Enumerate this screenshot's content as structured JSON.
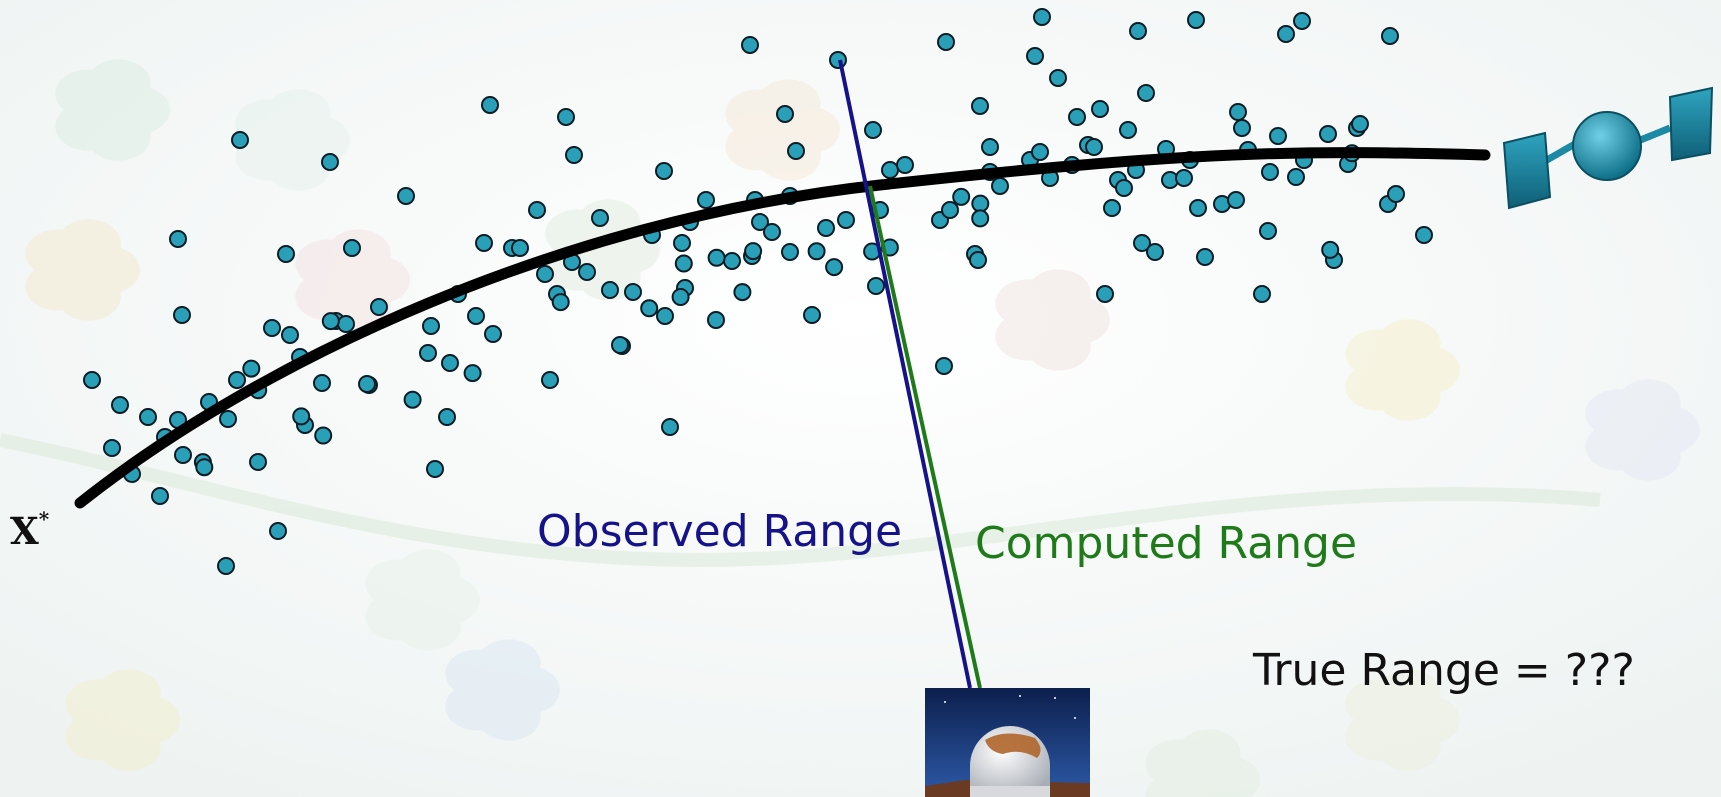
{
  "labels": {
    "initial_state": "X",
    "initial_state_sup": "*",
    "observed_range": "Observed Range",
    "computed_range": "Computed Range",
    "true_range": "True Range = ???"
  },
  "colors": {
    "background": "#f7f9f9",
    "points_fill": "#2aa0b8",
    "points_stroke": "#0b1d24",
    "trajectory": "#000000",
    "observed_line": "#16138a",
    "computed_line": "#1f7a1a",
    "satellite": "#1d8aa5"
  },
  "icons": {
    "satellite": "satellite-icon",
    "telescope": "telescope-dome-icon"
  },
  "scatter_point_count": 170
}
